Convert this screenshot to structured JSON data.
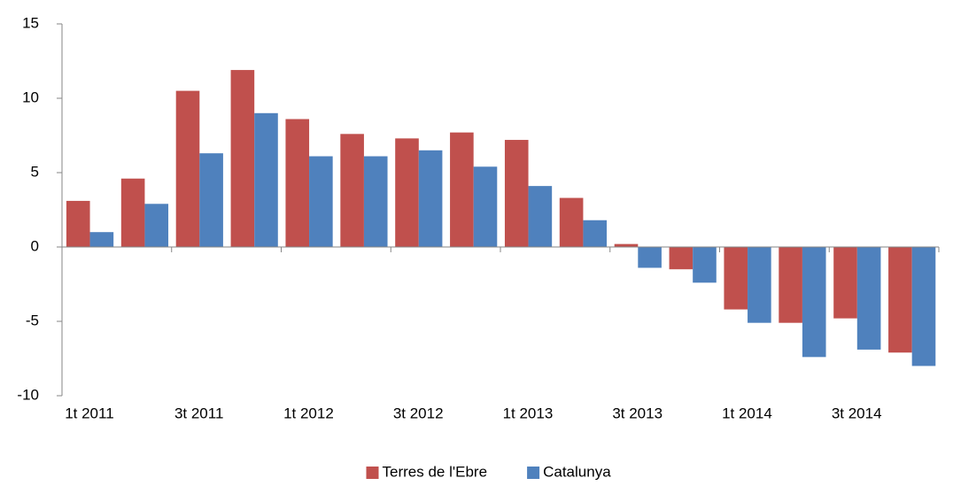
{
  "chart_data": {
    "type": "bar",
    "categories": [
      "1t 2011",
      null,
      "3t 2011",
      null,
      "1t 2012",
      null,
      "3t 2012",
      null,
      "1t 2013",
      null,
      "3t 2013",
      null,
      "1t 2014",
      null,
      "3t 2014",
      null
    ],
    "series": [
      {
        "name": "Terres de l'Ebre",
        "color": "#c0504d",
        "values": [
          3.1,
          4.6,
          10.5,
          11.9,
          8.6,
          7.6,
          7.3,
          7.7,
          7.2,
          3.3,
          0.2,
          -1.5,
          -4.2,
          -5.1,
          -4.8,
          -7.1
        ]
      },
      {
        "name": "Catalunya",
        "color": "#4f81bd",
        "values": [
          1.0,
          2.9,
          6.3,
          9.0,
          6.1,
          6.1,
          6.5,
          5.4,
          4.1,
          1.8,
          -1.4,
          -2.4,
          -5.1,
          -7.4,
          -6.9,
          -8.0
        ]
      }
    ],
    "ylim": [
      -10,
      15
    ],
    "yticks": [
      -10,
      -5,
      0,
      5,
      10,
      15
    ],
    "grid": false,
    "legend": "bottom"
  }
}
